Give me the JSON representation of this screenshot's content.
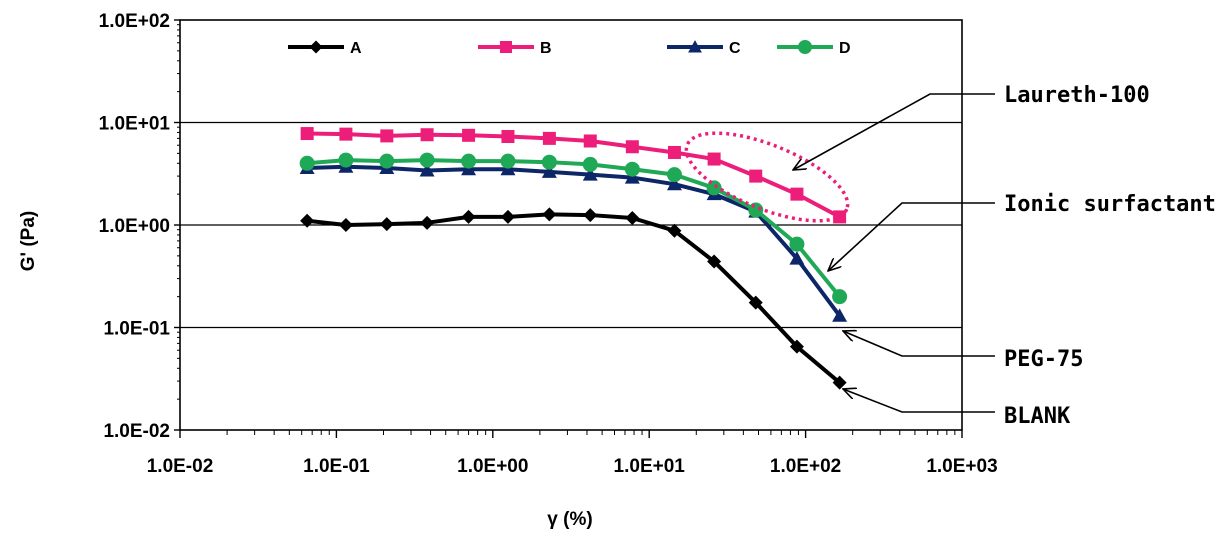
{
  "chart_data": {
    "type": "line",
    "title": "",
    "xlabel": "γ (%)",
    "ylabel": "G' (Pa)",
    "x_scale": "log",
    "y_scale": "log",
    "xlim": [
      0.01,
      1000
    ],
    "ylim": [
      0.01,
      100
    ],
    "x_tick_labels": [
      "1.0E-02",
      "1.0E-01",
      "1.0E+00",
      "1.0E+01",
      "1.0E+02",
      "1.0E+03"
    ],
    "y_tick_labels": [
      "1.0E+02",
      "1.0E+01",
      "1.0E+00",
      "1.0E-01",
      "1.0E-02"
    ],
    "grid": "horizontal major lines",
    "legend_position": "top",
    "x": [
      0.065,
      0.115,
      0.21,
      0.38,
      0.7,
      1.25,
      2.3,
      4.2,
      7.8,
      14.5,
      26,
      48,
      88,
      165
    ],
    "series": [
      {
        "name": "A",
        "color": "#000000",
        "marker": "diamond",
        "values": [
          1.1,
          1.0,
          1.02,
          1.05,
          1.2,
          1.2,
          1.27,
          1.25,
          1.17,
          0.88,
          0.44,
          0.175,
          0.065,
          0.029
        ]
      },
      {
        "name": "B",
        "color": "#EC1E79",
        "marker": "square",
        "values": [
          7.8,
          7.7,
          7.4,
          7.6,
          7.5,
          7.3,
          7.0,
          6.6,
          5.8,
          5.1,
          4.4,
          3.0,
          2.0,
          1.2
        ]
      },
      {
        "name": "C",
        "color": "#0D2668",
        "marker": "triangle",
        "values": [
          3.6,
          3.7,
          3.6,
          3.4,
          3.5,
          3.5,
          3.3,
          3.1,
          2.9,
          2.5,
          2.0,
          1.35,
          0.47,
          0.13
        ]
      },
      {
        "name": "D",
        "color": "#1FA855",
        "marker": "circle",
        "values": [
          4.0,
          4.3,
          4.2,
          4.3,
          4.2,
          4.2,
          4.1,
          3.9,
          3.5,
          3.1,
          2.3,
          1.4,
          0.65,
          0.2
        ]
      }
    ],
    "annotations": [
      {
        "text": "Laureth-100"
      },
      {
        "text": "Ionic surfactant"
      },
      {
        "text": "PEG-75"
      },
      {
        "text": "BLANK"
      }
    ]
  }
}
